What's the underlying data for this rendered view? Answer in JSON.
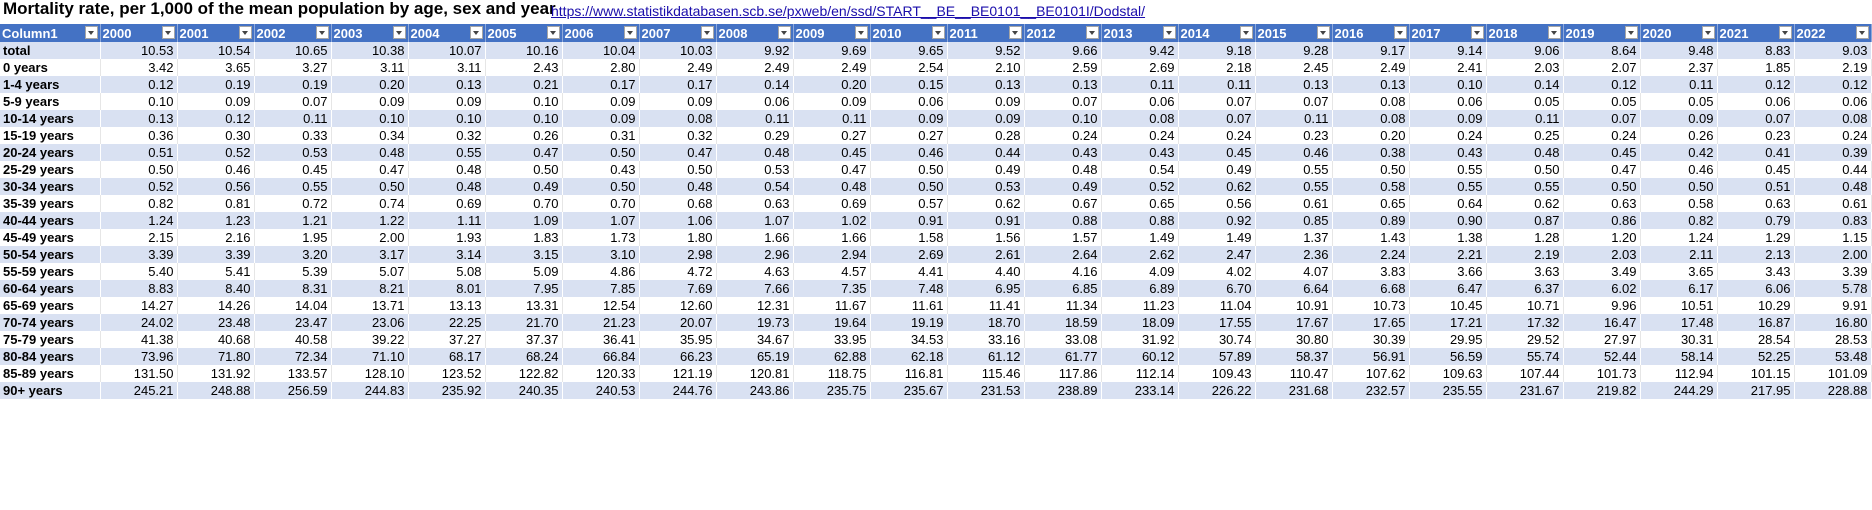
{
  "title": "Mortality rate, per 1,000 of the mean population by age, sex and year",
  "source_link": "https://www.statistikdatabasen.scb.se/pxweb/en/ssd/START__BE__BE0101__BE0101I/Dodstal/",
  "colors": {
    "header": "#4472c4",
    "band": "#d9e1f2",
    "link": "#1a0dab"
  },
  "table": {
    "headers": [
      "Column1",
      "2000",
      "2001",
      "2002",
      "2003",
      "2004",
      "2005",
      "2006",
      "2007",
      "2008",
      "2009",
      "2010",
      "2011",
      "2012",
      "2013",
      "2014",
      "2015",
      "2016",
      "2017",
      "2018",
      "2019",
      "2020",
      "2021",
      "2022"
    ],
    "rows": [
      [
        "total",
        "10.53",
        "10.54",
        "10.65",
        "10.38",
        "10.07",
        "10.16",
        "10.04",
        "10.03",
        "9.92",
        "9.69",
        "9.65",
        "9.52",
        "9.66",
        "9.42",
        "9.18",
        "9.28",
        "9.17",
        "9.14",
        "9.06",
        "8.64",
        "9.48",
        "8.83",
        "9.03"
      ],
      [
        "0 years",
        "3.42",
        "3.65",
        "3.27",
        "3.11",
        "3.11",
        "2.43",
        "2.80",
        "2.49",
        "2.49",
        "2.49",
        "2.54",
        "2.10",
        "2.59",
        "2.69",
        "2.18",
        "2.45",
        "2.49",
        "2.41",
        "2.03",
        "2.07",
        "2.37",
        "1.85",
        "2.19"
      ],
      [
        "1-4 years",
        "0.12",
        "0.19",
        "0.19",
        "0.20",
        "0.13",
        "0.21",
        "0.17",
        "0.17",
        "0.14",
        "0.20",
        "0.15",
        "0.13",
        "0.13",
        "0.11",
        "0.11",
        "0.13",
        "0.13",
        "0.10",
        "0.14",
        "0.12",
        "0.11",
        "0.12",
        "0.12"
      ],
      [
        "5-9 years",
        "0.10",
        "0.09",
        "0.07",
        "0.09",
        "0.09",
        "0.10",
        "0.09",
        "0.09",
        "0.06",
        "0.09",
        "0.06",
        "0.09",
        "0.07",
        "0.06",
        "0.07",
        "0.07",
        "0.08",
        "0.06",
        "0.05",
        "0.05",
        "0.05",
        "0.06",
        "0.06"
      ],
      [
        "10-14 years",
        "0.13",
        "0.12",
        "0.11",
        "0.10",
        "0.10",
        "0.10",
        "0.09",
        "0.08",
        "0.11",
        "0.11",
        "0.09",
        "0.09",
        "0.10",
        "0.08",
        "0.07",
        "0.11",
        "0.08",
        "0.09",
        "0.11",
        "0.07",
        "0.09",
        "0.07",
        "0.08"
      ],
      [
        "15-19 years",
        "0.36",
        "0.30",
        "0.33",
        "0.34",
        "0.32",
        "0.26",
        "0.31",
        "0.32",
        "0.29",
        "0.27",
        "0.27",
        "0.28",
        "0.24",
        "0.24",
        "0.24",
        "0.23",
        "0.20",
        "0.24",
        "0.25",
        "0.24",
        "0.26",
        "0.23",
        "0.24"
      ],
      [
        "20-24 years",
        "0.51",
        "0.52",
        "0.53",
        "0.48",
        "0.55",
        "0.47",
        "0.50",
        "0.47",
        "0.48",
        "0.45",
        "0.46",
        "0.44",
        "0.43",
        "0.43",
        "0.45",
        "0.46",
        "0.38",
        "0.43",
        "0.48",
        "0.45",
        "0.42",
        "0.41",
        "0.39"
      ],
      [
        "25-29 years",
        "0.50",
        "0.46",
        "0.45",
        "0.47",
        "0.48",
        "0.50",
        "0.43",
        "0.50",
        "0.53",
        "0.47",
        "0.50",
        "0.49",
        "0.48",
        "0.54",
        "0.49",
        "0.55",
        "0.50",
        "0.55",
        "0.50",
        "0.47",
        "0.46",
        "0.45",
        "0.44"
      ],
      [
        "30-34 years",
        "0.52",
        "0.56",
        "0.55",
        "0.50",
        "0.48",
        "0.49",
        "0.50",
        "0.48",
        "0.54",
        "0.48",
        "0.50",
        "0.53",
        "0.49",
        "0.52",
        "0.62",
        "0.55",
        "0.58",
        "0.55",
        "0.55",
        "0.50",
        "0.50",
        "0.51",
        "0.48"
      ],
      [
        "35-39 years",
        "0.82",
        "0.81",
        "0.72",
        "0.74",
        "0.69",
        "0.70",
        "0.70",
        "0.68",
        "0.63",
        "0.69",
        "0.57",
        "0.62",
        "0.67",
        "0.65",
        "0.56",
        "0.61",
        "0.65",
        "0.64",
        "0.62",
        "0.63",
        "0.58",
        "0.63",
        "0.61"
      ],
      [
        "40-44 years",
        "1.24",
        "1.23",
        "1.21",
        "1.22",
        "1.11",
        "1.09",
        "1.07",
        "1.06",
        "1.07",
        "1.02",
        "0.91",
        "0.91",
        "0.88",
        "0.88",
        "0.92",
        "0.85",
        "0.89",
        "0.90",
        "0.87",
        "0.86",
        "0.82",
        "0.79",
        "0.83"
      ],
      [
        "45-49 years",
        "2.15",
        "2.16",
        "1.95",
        "2.00",
        "1.93",
        "1.83",
        "1.73",
        "1.80",
        "1.66",
        "1.66",
        "1.58",
        "1.56",
        "1.57",
        "1.49",
        "1.49",
        "1.37",
        "1.43",
        "1.38",
        "1.28",
        "1.20",
        "1.24",
        "1.29",
        "1.15"
      ],
      [
        "50-54 years",
        "3.39",
        "3.39",
        "3.20",
        "3.17",
        "3.14",
        "3.15",
        "3.10",
        "2.98",
        "2.96",
        "2.94",
        "2.69",
        "2.61",
        "2.64",
        "2.62",
        "2.47",
        "2.36",
        "2.24",
        "2.21",
        "2.19",
        "2.03",
        "2.11",
        "2.13",
        "2.00"
      ],
      [
        "55-59 years",
        "5.40",
        "5.41",
        "5.39",
        "5.07",
        "5.08",
        "5.09",
        "4.86",
        "4.72",
        "4.63",
        "4.57",
        "4.41",
        "4.40",
        "4.16",
        "4.09",
        "4.02",
        "4.07",
        "3.83",
        "3.66",
        "3.63",
        "3.49",
        "3.65",
        "3.43",
        "3.39"
      ],
      [
        "60-64 years",
        "8.83",
        "8.40",
        "8.31",
        "8.21",
        "8.01",
        "7.95",
        "7.85",
        "7.69",
        "7.66",
        "7.35",
        "7.48",
        "6.95",
        "6.85",
        "6.89",
        "6.70",
        "6.64",
        "6.68",
        "6.47",
        "6.37",
        "6.02",
        "6.17",
        "6.06",
        "5.78"
      ],
      [
        "65-69 years",
        "14.27",
        "14.26",
        "14.04",
        "13.71",
        "13.13",
        "13.31",
        "12.54",
        "12.60",
        "12.31",
        "11.67",
        "11.61",
        "11.41",
        "11.34",
        "11.23",
        "11.04",
        "10.91",
        "10.73",
        "10.45",
        "10.71",
        "9.96",
        "10.51",
        "10.29",
        "9.91"
      ],
      [
        "70-74 years",
        "24.02",
        "23.48",
        "23.47",
        "23.06",
        "22.25",
        "21.70",
        "21.23",
        "20.07",
        "19.73",
        "19.64",
        "19.19",
        "18.70",
        "18.59",
        "18.09",
        "17.55",
        "17.67",
        "17.65",
        "17.21",
        "17.32",
        "16.47",
        "17.48",
        "16.87",
        "16.80"
      ],
      [
        "75-79 years",
        "41.38",
        "40.68",
        "40.58",
        "39.22",
        "37.27",
        "37.37",
        "36.41",
        "35.95",
        "34.67",
        "33.95",
        "34.53",
        "33.16",
        "33.08",
        "31.92",
        "30.74",
        "30.80",
        "30.39",
        "29.95",
        "29.52",
        "27.97",
        "30.31",
        "28.54",
        "28.53"
      ],
      [
        "80-84 years",
        "73.96",
        "71.80",
        "72.34",
        "71.10",
        "68.17",
        "68.24",
        "66.84",
        "66.23",
        "65.19",
        "62.88",
        "62.18",
        "61.12",
        "61.77",
        "60.12",
        "57.89",
        "58.37",
        "56.91",
        "56.59",
        "55.74",
        "52.44",
        "58.14",
        "52.25",
        "53.48"
      ],
      [
        "85-89 years",
        "131.50",
        "131.92",
        "133.57",
        "128.10",
        "123.52",
        "122.82",
        "120.33",
        "121.19",
        "120.81",
        "118.75",
        "116.81",
        "115.46",
        "117.86",
        "112.14",
        "109.43",
        "110.47",
        "107.62",
        "109.63",
        "107.44",
        "101.73",
        "112.94",
        "101.15",
        "101.09"
      ],
      [
        "90+ years",
        "245.21",
        "248.88",
        "256.59",
        "244.83",
        "235.92",
        "240.35",
        "240.53",
        "244.76",
        "243.86",
        "235.75",
        "235.67",
        "231.53",
        "238.89",
        "233.14",
        "226.22",
        "231.68",
        "232.57",
        "235.55",
        "231.67",
        "219.82",
        "244.29",
        "217.95",
        "228.88"
      ]
    ]
  }
}
